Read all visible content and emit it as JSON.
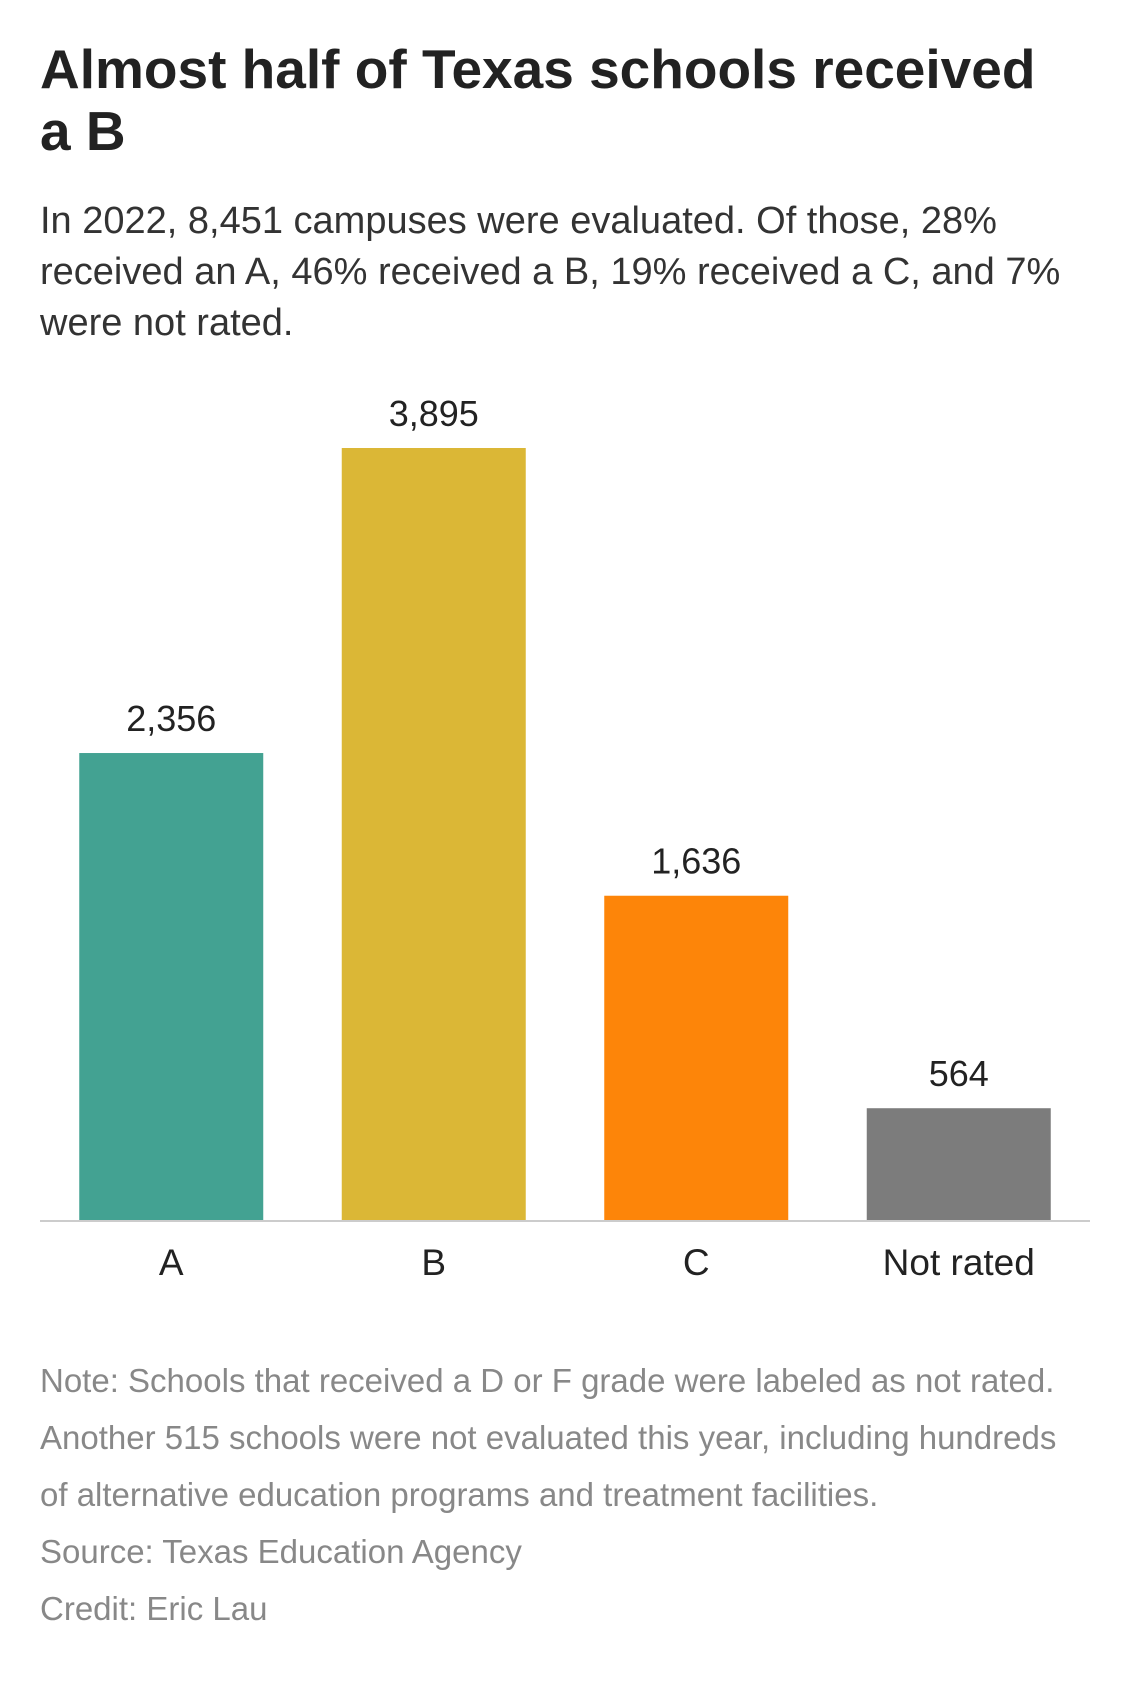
{
  "header": {
    "title": "Almost half of Texas schools received a B",
    "subtitle": "In 2022, 8,451 campuses were evaluated. Of those, 28% received an A, 46% received a B, 19% received a C, and 7% were not rated."
  },
  "chart_data": {
    "type": "bar",
    "categories": [
      "A",
      "B",
      "C",
      "Not rated"
    ],
    "values": [
      2356,
      3895,
      1636,
      564
    ],
    "value_labels": [
      "2,356",
      "3,895",
      "1,636",
      "564"
    ],
    "colors": [
      "#43a292",
      "#dbb736",
      "#fd8509",
      "#7c7c7c"
    ],
    "ylim": [
      0,
      3895
    ],
    "grid": false,
    "legend": "none",
    "baseline_color": "#cccccc"
  },
  "footer": {
    "note": "Note: Schools that received a D or F grade were labeled as not rated. Another 515 schools were not evaluated this year, including hundreds of alternative education programs and treatment facilities.",
    "source": "Source: Texas Education Agency",
    "credit": "Credit: Eric Lau"
  }
}
